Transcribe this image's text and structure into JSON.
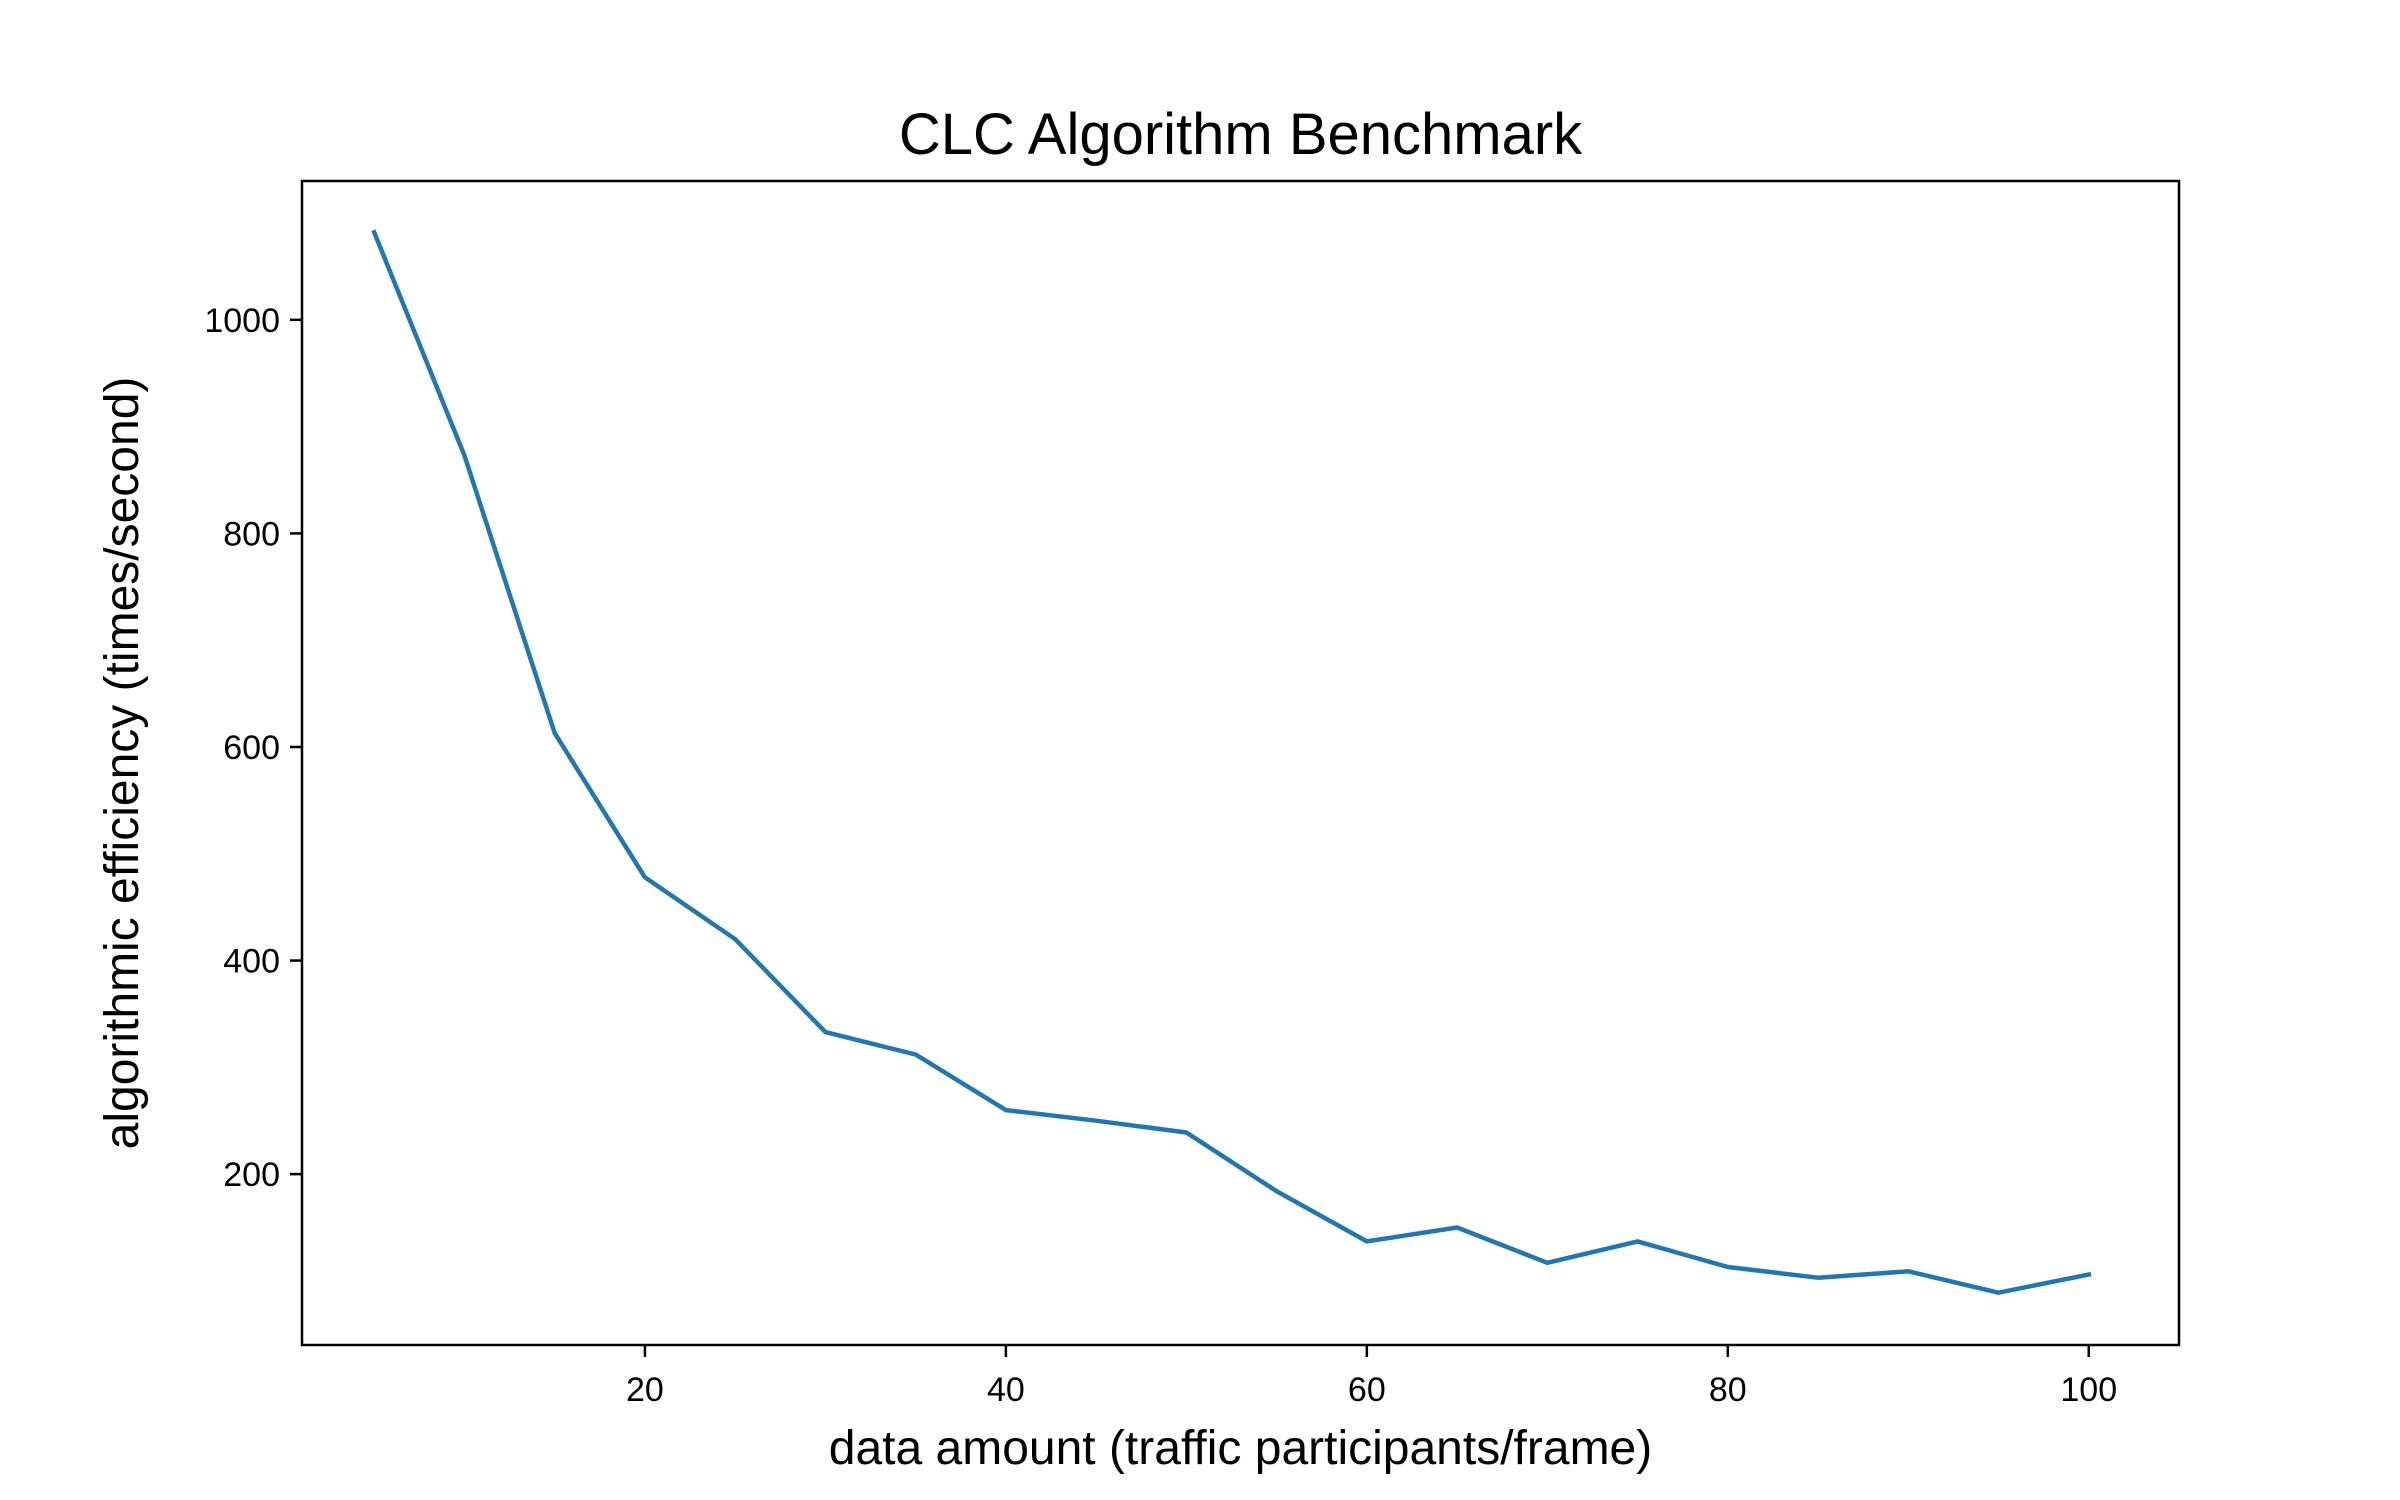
{
  "chart_data": {
    "type": "line",
    "title": "CLC Algorithm Benchmark",
    "xlabel": "data amount (traffic participants/frame)",
    "ylabel": "algorithmic efficiency (times/second)",
    "xlim": [
      1,
      105
    ],
    "ylim": [
      40,
      1130
    ],
    "xticks": [
      20,
      40,
      60,
      80,
      100
    ],
    "yticks": [
      200,
      400,
      600,
      800,
      1000
    ],
    "grid": false,
    "series": [
      {
        "color": "#1f77b4",
        "x": [
          5,
          10,
          15,
          20,
          25,
          30,
          35,
          40,
          45,
          50,
          55,
          60,
          65,
          70,
          75,
          80,
          85,
          90,
          95,
          100
        ],
        "y": [
          1082,
          873,
          613,
          478,
          420,
          333,
          312,
          260,
          250,
          239,
          184,
          137,
          150,
          117,
          137,
          113,
          103,
          109,
          89,
          106
        ]
      }
    ]
  }
}
